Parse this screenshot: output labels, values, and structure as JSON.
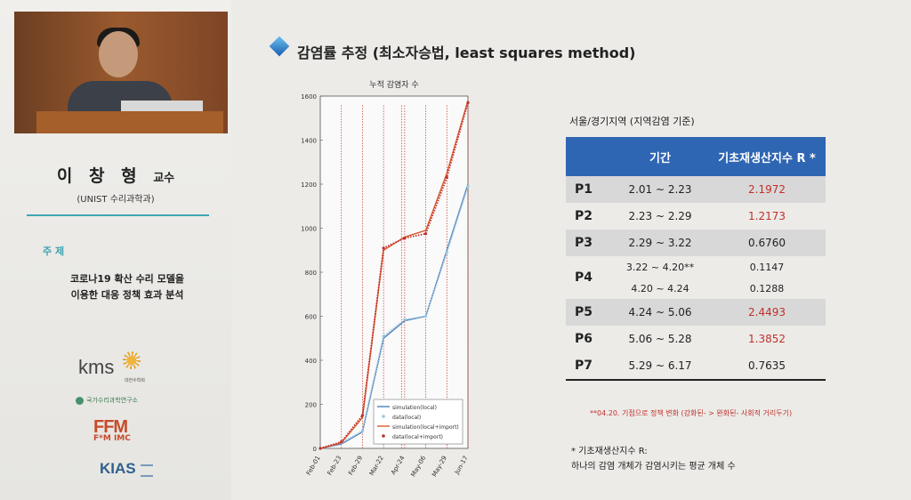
{
  "speaker": {
    "name": "이 창 형",
    "title": "교수",
    "affiliation": "(UNIST 수리과학과)"
  },
  "topic": {
    "label": "주 제",
    "line1": "코로나19 확산 수리 모델을",
    "line2": "이용한  대응 정책 효과 분석"
  },
  "logos": {
    "kms": "kms",
    "kms_sub": "대한수학회",
    "nims": "국가수리과학연구소",
    "ffm_top": "FFM",
    "ffm_bottom": "F*M IMC",
    "kias": "KIAS"
  },
  "slide": {
    "title": "감염률 추정 (최소자승법, least squares method)",
    "region_label": "서울/경기지역 (지역감염 기준)",
    "table": {
      "header_period": "기간",
      "header_r": "기초재생산지수 R *",
      "rows": [
        {
          "p": "P1",
          "period": "2.01 ~ 2.23",
          "r": "2.1972",
          "red": true
        },
        {
          "p": "P2",
          "period": "2.23 ~ 2.29",
          "r": "1.2173",
          "red": true
        },
        {
          "p": "P3",
          "period": "2.29 ~ 3.22",
          "r": "0.6760",
          "red": false
        },
        {
          "p": "P4",
          "period": "3.22 ~ 4.20**",
          "r": "0.1147",
          "red": false
        },
        {
          "p": "",
          "period": "4.20 ~ 4.24",
          "r": "0.1288",
          "red": false
        },
        {
          "p": "P5",
          "period": "4.24 ~ 5.06",
          "r": "2.4493",
          "red": true
        },
        {
          "p": "P6",
          "period": "5.06 ~ 5.28",
          "r": "1.3852",
          "red": true
        },
        {
          "p": "P7",
          "period": "5.29 ~ 6.17",
          "r": "0.7635",
          "red": false
        }
      ]
    },
    "footnote_red": "**04.20. 기점으로 정책 변화 (강화된- > 완화된- 사회적 거리두기)",
    "note_line1": "* 기초재생산지수 R:",
    "note_line2": "하나의 감염 개체가 감염시키는 평균 개체 수"
  },
  "chart_data": {
    "type": "line",
    "title": "누적 감염자 수",
    "x": [
      "Feb-01",
      "Feb-23",
      "Feb-29",
      "Mar-22",
      "Apr-24",
      "May-06",
      "May-29",
      "Jun-17"
    ],
    "ylim": [
      0,
      1600
    ],
    "yticks": [
      0,
      200,
      400,
      600,
      800,
      1000,
      1200,
      1400,
      1600
    ],
    "grid": false,
    "legend_position": "bottom-right",
    "series": [
      {
        "name": "simulation(local)",
        "color": "#4f7fb8",
        "style": "solid",
        "values": [
          0,
          20,
          75,
          500,
          580,
          600,
          900,
          1200
        ]
      },
      {
        "name": "data(local)",
        "color": "#9cc6e0",
        "style": "markers",
        "values": [
          0,
          25,
          80,
          510,
          585,
          600,
          890,
          1190
        ]
      },
      {
        "name": "simulation(local+import)",
        "color": "#d9572b",
        "style": "solid",
        "values": [
          0,
          25,
          140,
          900,
          960,
          990,
          1250,
          1580
        ]
      },
      {
        "name": "data(local+import)",
        "color": "#c0302a",
        "style": "markers",
        "values": [
          0,
          30,
          150,
          910,
          955,
          975,
          1230,
          1570
        ]
      }
    ],
    "vlines": [
      "Feb-23",
      "Feb-29",
      "Mar-22",
      "Apr-20",
      "Apr-24",
      "May-06",
      "May-29",
      "Jun-17"
    ]
  }
}
